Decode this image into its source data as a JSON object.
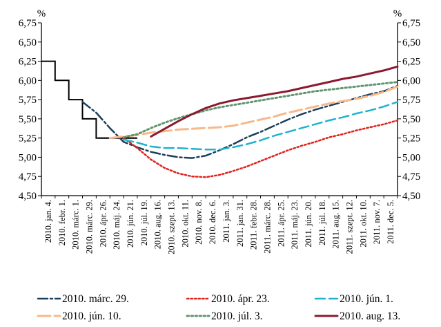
{
  "chart_data": {
    "type": "line",
    "unit_left": "%",
    "unit_right": "%",
    "ylim": [
      4.5,
      6.75
    ],
    "y_ticks": [
      "6,75",
      "6,50",
      "6,25",
      "6,00",
      "5,75",
      "5,50",
      "5,25",
      "5,00",
      "4,75",
      "4,50"
    ],
    "y_tick_values": [
      6.75,
      6.5,
      6.25,
      6.0,
      5.75,
      5.5,
      5.25,
      5.0,
      4.75,
      4.5
    ],
    "x_ticks": [
      "2010. jan. 4.",
      "2010. febr. 1.",
      "2010. márc. 1.",
      "2010. márc. 29.",
      "2010. ápr. 26.",
      "2010. máj. 24.",
      "2010. jún. 21.",
      "2010. júl. 19.",
      "2010. aug. 16.",
      "2010. szept. 13.",
      "2010. okt. 11.",
      "2010. nov. 8.",
      "2010. dec. 6.",
      "2011. jan. 3.",
      "2011. jan. 31.",
      "2011. febr. 28.",
      "2011. márc. 28.",
      "2011. ápr. 25.",
      "2011. máj. 23.",
      "2011. jún. 20.",
      "2011. júl. 18.",
      "2011. aug. 15.",
      "2011. szept. 12.",
      "2011. okt. 10.",
      "2011. nov. 7.",
      "2011. dec. 5."
    ],
    "x_domain": [
      0,
      26
    ],
    "policy_rate": {
      "values": [
        [
          0,
          6.25
        ],
        [
          1,
          6.25
        ],
        [
          1,
          6.0
        ],
        [
          2,
          6.0
        ],
        [
          2,
          5.75
        ],
        [
          3,
          5.75
        ],
        [
          3,
          5.5
        ],
        [
          4,
          5.5
        ],
        [
          4,
          5.25
        ],
        [
          7,
          5.25
        ]
      ]
    },
    "series": [
      {
        "name": "2010. márc. 29.",
        "color": "#1a3f5c",
        "dash": "14 4 3 4",
        "width": 2.5,
        "values": [
          [
            3,
            5.72
          ],
          [
            4,
            5.58
          ],
          [
            5,
            5.38
          ],
          [
            6,
            5.2
          ],
          [
            7,
            5.13
          ],
          [
            8,
            5.07
          ],
          [
            9,
            5.03
          ],
          [
            10,
            5.0
          ],
          [
            11,
            4.99
          ],
          [
            12,
            5.02
          ],
          [
            13,
            5.09
          ],
          [
            14,
            5.17
          ],
          [
            15,
            5.26
          ],
          [
            16,
            5.33
          ],
          [
            17,
            5.41
          ],
          [
            18,
            5.49
          ],
          [
            19,
            5.56
          ],
          [
            20,
            5.62
          ],
          [
            21,
            5.67
          ],
          [
            22,
            5.72
          ],
          [
            23,
            5.77
          ],
          [
            24,
            5.82
          ],
          [
            25,
            5.86
          ],
          [
            26,
            5.93
          ]
        ]
      },
      {
        "name": "2010. ápr. 23.",
        "color": "#e0201b",
        "dash": "2.5 3",
        "width": 2.5,
        "values": [
          [
            6,
            5.25
          ],
          [
            7,
            5.12
          ],
          [
            8,
            4.97
          ],
          [
            9,
            4.86
          ],
          [
            10,
            4.79
          ],
          [
            11,
            4.75
          ],
          [
            12,
            4.74
          ],
          [
            13,
            4.77
          ],
          [
            14,
            4.82
          ],
          [
            15,
            4.88
          ],
          [
            16,
            4.95
          ],
          [
            17,
            5.02
          ],
          [
            18,
            5.09
          ],
          [
            19,
            5.15
          ],
          [
            20,
            5.2
          ],
          [
            21,
            5.26
          ],
          [
            22,
            5.3
          ],
          [
            23,
            5.35
          ],
          [
            24,
            5.39
          ],
          [
            25,
            5.43
          ],
          [
            26,
            5.48
          ]
        ]
      },
      {
        "name": "2010. jún. 1.",
        "color": "#1fb2ce",
        "dash": "14 6",
        "width": 2.5,
        "values": [
          [
            6,
            5.23
          ],
          [
            7,
            5.19
          ],
          [
            8,
            5.14
          ],
          [
            9,
            5.12
          ],
          [
            10,
            5.12
          ],
          [
            11,
            5.11
          ],
          [
            12,
            5.1
          ],
          [
            13,
            5.1
          ],
          [
            14,
            5.13
          ],
          [
            15,
            5.17
          ],
          [
            16,
            5.22
          ],
          [
            17,
            5.28
          ],
          [
            18,
            5.33
          ],
          [
            19,
            5.38
          ],
          [
            20,
            5.43
          ],
          [
            21,
            5.48
          ],
          [
            22,
            5.52
          ],
          [
            23,
            5.57
          ],
          [
            24,
            5.61
          ],
          [
            25,
            5.66
          ],
          [
            26,
            5.72
          ]
        ]
      },
      {
        "name": "2010. jún. 10.",
        "color": "#f7b88a",
        "dash": "18 6",
        "width": 3,
        "values": [
          [
            5,
            5.25
          ],
          [
            6,
            5.27
          ],
          [
            7,
            5.29
          ],
          [
            8,
            5.32
          ],
          [
            9,
            5.34
          ],
          [
            10,
            5.36
          ],
          [
            11,
            5.37
          ],
          [
            12,
            5.38
          ],
          [
            13,
            5.39
          ],
          [
            14,
            5.41
          ],
          [
            15,
            5.45
          ],
          [
            16,
            5.49
          ],
          [
            17,
            5.53
          ],
          [
            18,
            5.58
          ],
          [
            19,
            5.62
          ],
          [
            20,
            5.66
          ],
          [
            21,
            5.7
          ],
          [
            22,
            5.73
          ],
          [
            23,
            5.76
          ],
          [
            24,
            5.8
          ],
          [
            25,
            5.85
          ],
          [
            26,
            5.92
          ]
        ]
      },
      {
        "name": "2010. júl. 3.",
        "color": "#5f9670",
        "dash": "2.5 3.5",
        "width": 3,
        "values": [
          [
            6,
            5.26
          ],
          [
            7,
            5.3
          ],
          [
            8,
            5.38
          ],
          [
            9,
            5.45
          ],
          [
            10,
            5.51
          ],
          [
            11,
            5.56
          ],
          [
            12,
            5.61
          ],
          [
            13,
            5.65
          ],
          [
            14,
            5.68
          ],
          [
            15,
            5.71
          ],
          [
            16,
            5.74
          ],
          [
            17,
            5.77
          ],
          [
            18,
            5.8
          ],
          [
            19,
            5.83
          ],
          [
            20,
            5.86
          ],
          [
            21,
            5.88
          ],
          [
            22,
            5.9
          ],
          [
            23,
            5.92
          ],
          [
            24,
            5.94
          ],
          [
            25,
            5.96
          ],
          [
            26,
            5.98
          ]
        ]
      },
      {
        "name": "2010. aug. 13.",
        "color": "#8b1a2e",
        "dash": "",
        "width": 3,
        "values": [
          [
            8,
            5.27
          ],
          [
            9,
            5.37
          ],
          [
            10,
            5.47
          ],
          [
            11,
            5.56
          ],
          [
            12,
            5.64
          ],
          [
            13,
            5.7
          ],
          [
            14,
            5.74
          ],
          [
            15,
            5.77
          ],
          [
            16,
            5.8
          ],
          [
            17,
            5.83
          ],
          [
            18,
            5.86
          ],
          [
            19,
            5.9
          ],
          [
            20,
            5.94
          ],
          [
            21,
            5.98
          ],
          [
            22,
            6.02
          ],
          [
            23,
            6.05
          ],
          [
            24,
            6.09
          ],
          [
            25,
            6.13
          ],
          [
            26,
            6.18
          ]
        ]
      }
    ],
    "legend_position": "bottom",
    "grid": false
  }
}
